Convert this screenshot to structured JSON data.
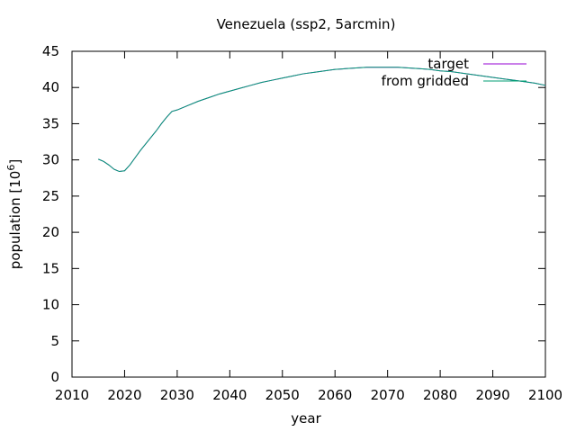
{
  "chart_data": {
    "type": "line",
    "title": "Venezuela (ssp2, 5arcmin)",
    "xlabel": "year",
    "ylabel_prefix": "population [10",
    "ylabel_exponent": "6",
    "ylabel_suffix": "]",
    "xlim": [
      2010,
      2100
    ],
    "ylim": [
      0,
      45
    ],
    "x_ticks": [
      "2010",
      "2020",
      "2030",
      "2040",
      "2050",
      "2060",
      "2070",
      "2080",
      "2090",
      "2100"
    ],
    "y_ticks": [
      "0",
      "5",
      "10",
      "15",
      "20",
      "25",
      "30",
      "35",
      "40",
      "45"
    ],
    "grid": false,
    "legend_position": "top-right",
    "x": [
      2015,
      2016,
      2017,
      2018,
      2019,
      2020,
      2021,
      2022,
      2023,
      2024,
      2025,
      2026,
      2027,
      2028,
      2029,
      2030,
      2032,
      2034,
      2036,
      2038,
      2040,
      2042,
      2044,
      2046,
      2048,
      2050,
      2052,
      2054,
      2056,
      2058,
      2060,
      2062,
      2064,
      2066,
      2068,
      2070,
      2072,
      2074,
      2076,
      2078,
      2080,
      2082,
      2084,
      2086,
      2088,
      2090,
      2092,
      2094,
      2096,
      2098,
      2100
    ],
    "series": [
      {
        "name": "target",
        "color": "#9400d3",
        "values": [
          30.1,
          29.8,
          29.3,
          28.7,
          28.4,
          28.5,
          29.3,
          30.3,
          31.3,
          32.2,
          33.1,
          34.0,
          35.0,
          35.9,
          36.7,
          36.9,
          37.5,
          38.1,
          38.6,
          39.1,
          39.5,
          39.9,
          40.3,
          40.7,
          41.0,
          41.3,
          41.6,
          41.9,
          42.1,
          42.3,
          42.5,
          42.6,
          42.7,
          42.8,
          42.8,
          42.8,
          42.8,
          42.7,
          42.6,
          42.5,
          42.3,
          42.2,
          42.0,
          41.8,
          41.6,
          41.4,
          41.2,
          41.0,
          40.8,
          40.6,
          40.3
        ]
      },
      {
        "name": "from gridded",
        "color": "#009e73",
        "values": [
          30.1,
          29.8,
          29.3,
          28.7,
          28.4,
          28.5,
          29.3,
          30.3,
          31.3,
          32.2,
          33.1,
          34.0,
          35.0,
          35.9,
          36.7,
          36.9,
          37.5,
          38.1,
          38.6,
          39.1,
          39.5,
          39.9,
          40.3,
          40.7,
          41.0,
          41.3,
          41.6,
          41.9,
          42.1,
          42.3,
          42.5,
          42.6,
          42.7,
          42.8,
          42.8,
          42.8,
          42.8,
          42.7,
          42.6,
          42.5,
          42.3,
          42.2,
          42.0,
          41.8,
          41.6,
          41.4,
          41.2,
          41.0,
          40.8,
          40.6,
          40.3
        ]
      }
    ]
  }
}
